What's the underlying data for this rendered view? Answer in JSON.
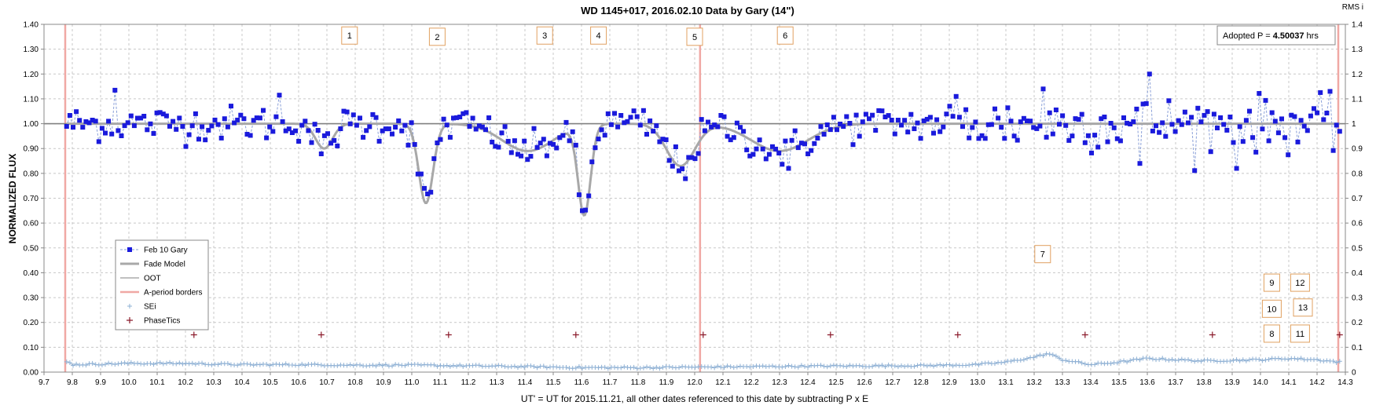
{
  "chart_data": {
    "type": "scatter",
    "title": "WD 1145+017, 2016.02.10 Data by Gary (14\")",
    "xlabel": "UT' = UT for 2015.11.21, all other dates referenced to this date by subtracting P x E",
    "ylabel": "NORMALIZED FLUX",
    "ylabel_right": "RMS i",
    "xlim": [
      9.7,
      14.3
    ],
    "ylim": [
      0.0,
      1.4
    ],
    "x_ticks": [
      "9.7",
      "9.8",
      "9.9",
      "10.0",
      "10.1",
      "10.2",
      "10.3",
      "10.4",
      "10.5",
      "10.6",
      "10.7",
      "10.8",
      "10.9",
      "11.0",
      "11.1",
      "11.2",
      "11.3",
      "11.4",
      "11.5",
      "11.6",
      "11.7",
      "11.8",
      "11.9",
      "12.0",
      "12.1",
      "12.2",
      "12.3",
      "12.4",
      "12.5",
      "12.6",
      "12.7",
      "12.8",
      "12.9",
      "13.0",
      "13.1",
      "13.2",
      "13.3",
      "13.4",
      "13.5",
      "13.6",
      "13.7",
      "13.8",
      "13.9",
      "14.0",
      "14.1",
      "14.2",
      "14.3"
    ],
    "y_ticks_left": [
      "0.00",
      "0.10",
      "0.20",
      "0.30",
      "0.40",
      "0.50",
      "0.60",
      "0.70",
      "0.80",
      "0.90",
      "1.00",
      "1.10",
      "1.20",
      "1.30",
      "1.40"
    ],
    "y_ticks_right": [
      "0",
      "0.1",
      "0.2",
      "0.3",
      "0.4",
      "0.5",
      "0.6",
      "0.7",
      "0.8",
      "0.9",
      "1",
      "1.1",
      "1.2",
      "1.3",
      "1.4"
    ],
    "grid": true,
    "legend_position": "lower-left",
    "adopted_period": {
      "prefix": "Adopted P = ",
      "value": "4.50037",
      "unit": " hrs"
    },
    "legend": [
      {
        "name": "Feb 10 Gary",
        "symbol": "square-dashed"
      },
      {
        "name": "Fade Model",
        "symbol": "thick-gray"
      },
      {
        "name": "OOT",
        "symbol": "thin-gray"
      },
      {
        "name": "A-period borders",
        "symbol": "pink"
      },
      {
        "name": "SEi",
        "symbol": "plus-blue"
      },
      {
        "name": "PhaseTics",
        "symbol": "plus-dark"
      }
    ],
    "colors": {
      "data": "#1a1adc",
      "data_line": "#8aa0d8",
      "model": "#a8a8a8",
      "oot": "#808080",
      "border": "#f0a8a4",
      "sei": "#8eb0d4",
      "phase": "#8b1a2a",
      "box": "#e0a060"
    },
    "oot_level": 1.0,
    "a_period_borders": [
      9.775,
      12.019,
      14.275
    ],
    "phase_tics": {
      "y": 0.15,
      "x": [
        10.23,
        10.68,
        11.13,
        11.58,
        12.03,
        12.48,
        12.93,
        13.38,
        13.83,
        14.28
      ]
    },
    "dips": [
      {
        "label": "1",
        "center": 10.69,
        "depth": 0.1,
        "width": 0.03
      },
      {
        "label": "2",
        "center": 11.05,
        "depth": 0.32,
        "width": 0.025
      },
      {
        "label": "3",
        "center": 11.41,
        "depth": 0.11,
        "width": 0.09
      },
      {
        "label": "4",
        "center": 11.61,
        "depth": 0.36,
        "width": 0.022
      },
      {
        "label": "5",
        "center": 11.95,
        "depth": 0.17,
        "width": 0.05
      },
      {
        "label": "6",
        "center": 12.3,
        "depth": 0.11,
        "width": 0.1
      }
    ],
    "annotations": [
      {
        "label": "1",
        "x": 10.78,
        "y": 1.355
      },
      {
        "label": "2",
        "x": 11.09,
        "y": 1.35
      },
      {
        "label": "3",
        "x": 11.47,
        "y": 1.355
      },
      {
        "label": "4",
        "x": 11.66,
        "y": 1.355
      },
      {
        "label": "5",
        "x": 12.0,
        "y": 1.35
      },
      {
        "label": "6",
        "x": 12.32,
        "y": 1.355
      },
      {
        "label": "7",
        "x": 13.23,
        "y": 0.475
      },
      {
        "label": "8",
        "x": 14.04,
        "y": 0.155
      },
      {
        "label": "9",
        "x": 14.04,
        "y": 0.36
      },
      {
        "label": "10",
        "x": 14.04,
        "y": 0.255
      },
      {
        "label": "11",
        "x": 14.14,
        "y": 0.155
      },
      {
        "label": "12",
        "x": 14.14,
        "y": 0.36
      },
      {
        "label": "13",
        "x": 14.15,
        "y": 0.26
      }
    ],
    "series": [
      {
        "name": "Feb 10 Gary",
        "x_start": 9.78,
        "x_end": 14.28,
        "n": 396,
        "scatter_rms": 0.035,
        "outliers": [
          [
            9.95,
            1.135
          ],
          [
            10.53,
            1.115
          ],
          [
            13.61,
            1.2
          ],
          [
            13.23,
            1.14
          ],
          [
            13.91,
            1.145
          ],
          [
            13.92,
            0.82
          ],
          [
            13.57,
            0.84
          ],
          [
            12.33,
            0.82
          ],
          [
            12.92,
            1.11
          ],
          [
            14.25,
            1.13
          ]
        ]
      },
      {
        "name": "SEi",
        "x": [
          9.8,
          10.0,
          10.2,
          10.4,
          10.6,
          10.8,
          11.0,
          11.2,
          11.4,
          11.6,
          11.8,
          12.0,
          12.2,
          12.4,
          12.6,
          12.8,
          13.0,
          13.1,
          13.2,
          13.25,
          13.3,
          13.4,
          13.5,
          13.6,
          13.7,
          13.8,
          14.0,
          14.1,
          14.2,
          14.28
        ],
        "y": [
          0.03,
          0.035,
          0.035,
          0.03,
          0.03,
          0.028,
          0.028,
          0.025,
          0.022,
          0.018,
          0.018,
          0.02,
          0.022,
          0.024,
          0.025,
          0.026,
          0.03,
          0.04,
          0.06,
          0.075,
          0.05,
          0.03,
          0.04,
          0.055,
          0.05,
          0.045,
          0.05,
          0.055,
          0.05,
          0.04
        ]
      }
    ]
  }
}
